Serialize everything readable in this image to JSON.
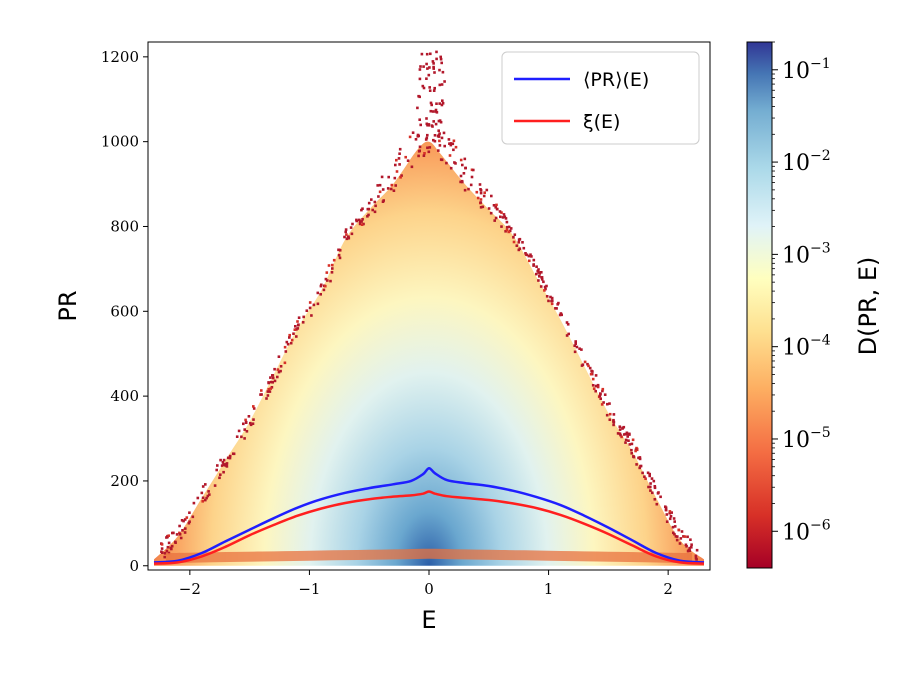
{
  "chart_data": {
    "type": "heatmap",
    "xlabel": "E",
    "ylabel": "PR",
    "xlim": [
      -2.35,
      2.35
    ],
    "ylim": [
      -10,
      1235
    ],
    "x_ticks": [
      -2,
      -1,
      0,
      1,
      2
    ],
    "x_tick_labels": [
      "−2",
      "−1",
      "0",
      "1",
      "2"
    ],
    "y_ticks": [
      0,
      200,
      400,
      600,
      800,
      1000,
      1200
    ],
    "y_tick_labels": [
      "0",
      "200",
      "400",
      "600",
      "800",
      "1000",
      "1200"
    ],
    "colorbar": {
      "label": "D(PR, E)",
      "scale": "log",
      "range": [
        4e-07,
        0.2
      ],
      "colormap": "RdYlBu",
      "ticks": [
        {
          "value": 1e-06,
          "base": "10",
          "exp": "−6"
        },
        {
          "value": 1e-05,
          "base": "10",
          "exp": "−5"
        },
        {
          "value": 0.0001,
          "base": "10",
          "exp": "−4"
        },
        {
          "value": 0.001,
          "base": "10",
          "exp": "−3"
        },
        {
          "value": 0.01,
          "base": "10",
          "exp": "−2"
        },
        {
          "value": 0.1,
          "base": "10",
          "exp": "−1"
        }
      ]
    },
    "density_envelope": {
      "E": [
        -2.3,
        -2.1,
        -1.9,
        -1.7,
        -1.5,
        -1.3,
        -1.1,
        -0.9,
        -0.7,
        -0.5,
        -0.3,
        -0.1,
        0.0,
        0.1,
        0.3,
        0.5,
        0.7,
        0.9,
        1.1,
        1.3,
        1.5,
        1.7,
        1.9,
        2.1,
        2.3
      ],
      "PR_max": [
        15,
        70,
        160,
        250,
        340,
        450,
        560,
        650,
        770,
        840,
        900,
        980,
        1000,
        970,
        900,
        840,
        780,
        680,
        580,
        470,
        360,
        270,
        160,
        60,
        15
      ]
    },
    "series": [
      {
        "name": "⟨PR⟩(E)",
        "color": "#1f1fff",
        "x": [
          -2.3,
          -2.1,
          -1.9,
          -1.7,
          -1.5,
          -1.3,
          -1.1,
          -0.9,
          -0.7,
          -0.5,
          -0.3,
          -0.15,
          -0.05,
          0.0,
          0.05,
          0.15,
          0.3,
          0.5,
          0.7,
          0.9,
          1.1,
          1.3,
          1.5,
          1.7,
          1.9,
          2.1,
          2.3
        ],
        "y": [
          8,
          12,
          30,
          58,
          85,
          112,
          137,
          157,
          172,
          183,
          192,
          200,
          216,
          230,
          218,
          202,
          195,
          188,
          177,
          162,
          143,
          118,
          90,
          60,
          30,
          12,
          8
        ]
      },
      {
        "name": "ξ(E)",
        "color": "#ff1f1f",
        "x": [
          -2.3,
          -2.1,
          -1.9,
          -1.7,
          -1.5,
          -1.3,
          -1.1,
          -0.9,
          -0.7,
          -0.5,
          -0.3,
          -0.15,
          -0.05,
          0.0,
          0.05,
          0.15,
          0.3,
          0.5,
          0.7,
          0.9,
          1.1,
          1.3,
          1.5,
          1.7,
          1.9,
          2.1,
          2.3
        ],
        "y": [
          5,
          8,
          22,
          45,
          72,
          96,
          118,
          135,
          148,
          157,
          163,
          166,
          170,
          175,
          170,
          164,
          160,
          155,
          147,
          136,
          120,
          99,
          75,
          48,
          22,
          8,
          5
        ]
      }
    ],
    "legend": {
      "position": "top-right",
      "entries": [
        "⟨PR⟩(E)",
        "ξ(E)"
      ]
    }
  }
}
